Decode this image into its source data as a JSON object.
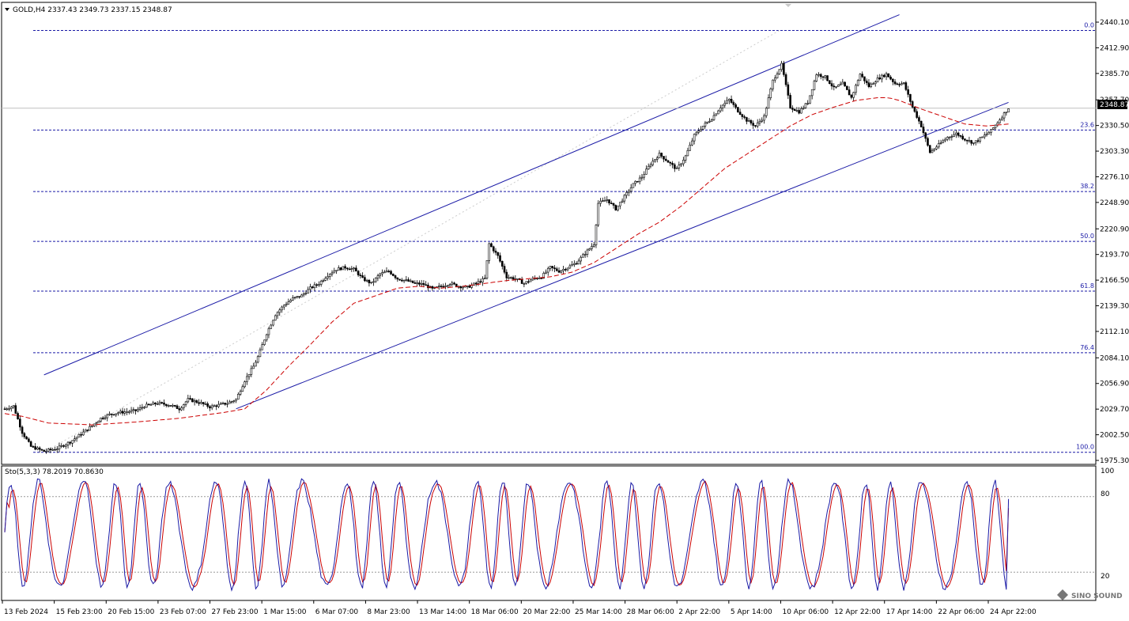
{
  "header": {
    "symbol_line": "GOLD,H4  2337.43 2349.73 2337.15 2348.87"
  },
  "oscillator": {
    "title": "Sto(5,3,3) 78.2019 70.8630",
    "levels": [
      "100",
      "80",
      "20"
    ]
  },
  "price_axis": {
    "current_price": "2348.87"
  },
  "watermark": "SINO SOUND",
  "chart_data": {
    "type": "candlestick",
    "symbol": "GOLD",
    "timeframe": "H4",
    "ohlc_last": {
      "open": 2337.43,
      "high": 2349.73,
      "low": 2337.15,
      "close": 2348.87
    },
    "y_ticks": [
      "2440.10",
      "2412.90",
      "2385.70",
      "2357.70",
      "2330.50",
      "2303.30",
      "2276.10",
      "2248.90",
      "2220.90",
      "2193.70",
      "2166.50",
      "2139.30",
      "2112.10",
      "2084.10",
      "2056.90",
      "2029.70",
      "2002.50",
      "1975.30"
    ],
    "x_ticks": [
      "13 Feb 2024",
      "15 Feb 23:00",
      "20 Feb 15:00",
      "23 Feb 07:00",
      "27 Feb 23:00",
      "1 Mar 15:00",
      "6 Mar 07:00",
      "8 Mar 23:00",
      "13 Mar 14:00",
      "18 Mar 06:00",
      "20 Mar 22:00",
      "25 Mar 14:00",
      "28 Mar 06:00",
      "2 Apr 22:00",
      "5 Apr 14:00",
      "10 Apr 06:00",
      "12 Apr 22:00",
      "17 Apr 14:00",
      "22 Apr 06:00",
      "24 Apr 22:00"
    ],
    "fibonacci": [
      {
        "level": "0.0",
        "price": 2431.3
      },
      {
        "level": "23.6",
        "price": 2325.7
      },
      {
        "level": "38.2",
        "price": 2260.4
      },
      {
        "level": "50.0",
        "price": 2207.6
      },
      {
        "level": "61.8",
        "price": 2154.8
      },
      {
        "level": "76.4",
        "price": 2089.5
      },
      {
        "level": "100.0",
        "price": 1983.9
      }
    ],
    "price_path": [
      [
        0,
        2030
      ],
      [
        4,
        2033
      ],
      [
        8,
        2005
      ],
      [
        12,
        1990
      ],
      [
        18,
        1985
      ],
      [
        24,
        1988
      ],
      [
        30,
        1995
      ],
      [
        36,
        2005
      ],
      [
        40,
        2012
      ],
      [
        44,
        2020
      ],
      [
        48,
        2024
      ],
      [
        52,
        2026
      ],
      [
        56,
        2027
      ],
      [
        60,
        2028
      ],
      [
        64,
        2033
      ],
      [
        70,
        2036
      ],
      [
        76,
        2034
      ],
      [
        80,
        2030
      ],
      [
        84,
        2040
      ],
      [
        90,
        2036
      ],
      [
        94,
        2032
      ],
      [
        98,
        2034
      ],
      [
        102,
        2036
      ],
      [
        106,
        2040
      ],
      [
        110,
        2060
      ],
      [
        114,
        2075
      ],
      [
        116,
        2085
      ],
      [
        120,
        2110
      ],
      [
        124,
        2130
      ],
      [
        128,
        2140
      ],
      [
        132,
        2147
      ],
      [
        136,
        2150
      ],
      [
        140,
        2158
      ],
      [
        144,
        2163
      ],
      [
        148,
        2172
      ],
      [
        152,
        2178
      ],
      [
        156,
        2180
      ],
      [
        160,
        2178
      ],
      [
        164,
        2168
      ],
      [
        168,
        2163
      ],
      [
        172,
        2173
      ],
      [
        176,
        2176
      ],
      [
        180,
        2168
      ],
      [
        184,
        2166
      ],
      [
        188,
        2163
      ],
      [
        192,
        2162
      ],
      [
        196,
        2157
      ],
      [
        200,
        2160
      ],
      [
        204,
        2163
      ],
      [
        208,
        2160
      ],
      [
        212,
        2159
      ],
      [
        216,
        2163
      ],
      [
        220,
        2168
      ],
      [
        222,
        2205
      ],
      [
        226,
        2192
      ],
      [
        230,
        2170
      ],
      [
        234,
        2168
      ],
      [
        238,
        2163
      ],
      [
        242,
        2168
      ],
      [
        246,
        2170
      ],
      [
        250,
        2180
      ],
      [
        254,
        2176
      ],
      [
        258,
        2180
      ],
      [
        262,
        2185
      ],
      [
        266,
        2195
      ],
      [
        270,
        2205
      ],
      [
        272,
        2248
      ],
      [
        276,
        2252
      ],
      [
        280,
        2242
      ],
      [
        284,
        2255
      ],
      [
        288,
        2268
      ],
      [
        292,
        2276
      ],
      [
        296,
        2290
      ],
      [
        300,
        2300
      ],
      [
        304,
        2292
      ],
      [
        308,
        2284
      ],
      [
        312,
        2298
      ],
      [
        316,
        2320
      ],
      [
        320,
        2330
      ],
      [
        324,
        2338
      ],
      [
        328,
        2350
      ],
      [
        332,
        2358
      ],
      [
        336,
        2346
      ],
      [
        340,
        2336
      ],
      [
        344,
        2330
      ],
      [
        348,
        2340
      ],
      [
        352,
        2378
      ],
      [
        356,
        2395
      ],
      [
        360,
        2350
      ],
      [
        364,
        2345
      ],
      [
        368,
        2355
      ],
      [
        372,
        2385
      ],
      [
        376,
        2382
      ],
      [
        380,
        2370
      ],
      [
        384,
        2375
      ],
      [
        388,
        2360
      ],
      [
        392,
        2385
      ],
      [
        396,
        2372
      ],
      [
        400,
        2380
      ],
      [
        404,
        2385
      ],
      [
        408,
        2375
      ],
      [
        412,
        2375
      ],
      [
        416,
        2350
      ],
      [
        420,
        2330
      ],
      [
        424,
        2302
      ],
      [
        428,
        2310
      ],
      [
        432,
        2318
      ],
      [
        436,
        2322
      ],
      [
        440,
        2316
      ],
      [
        444,
        2312
      ],
      [
        448,
        2318
      ],
      [
        452,
        2325
      ],
      [
        456,
        2337
      ],
      [
        460,
        2349
      ]
    ],
    "ma_path": [
      [
        0,
        2025
      ],
      [
        8,
        2022
      ],
      [
        20,
        2015
      ],
      [
        40,
        2013
      ],
      [
        60,
        2016
      ],
      [
        80,
        2020
      ],
      [
        100,
        2026
      ],
      [
        110,
        2030
      ],
      [
        120,
        2050
      ],
      [
        130,
        2075
      ],
      [
        140,
        2098
      ],
      [
        150,
        2122
      ],
      [
        160,
        2142
      ],
      [
        170,
        2150
      ],
      [
        180,
        2158
      ],
      [
        190,
        2160
      ],
      [
        200,
        2158
      ],
      [
        210,
        2160
      ],
      [
        220,
        2163
      ],
      [
        230,
        2166
      ],
      [
        240,
        2168
      ],
      [
        250,
        2170
      ],
      [
        260,
        2175
      ],
      [
        270,
        2185
      ],
      [
        280,
        2200
      ],
      [
        290,
        2215
      ],
      [
        300,
        2228
      ],
      [
        310,
        2245
      ],
      [
        320,
        2265
      ],
      [
        330,
        2285
      ],
      [
        340,
        2300
      ],
      [
        350,
        2315
      ],
      [
        360,
        2330
      ],
      [
        370,
        2342
      ],
      [
        380,
        2350
      ],
      [
        390,
        2357
      ],
      [
        400,
        2360
      ],
      [
        405,
        2360
      ],
      [
        410,
        2357
      ],
      [
        420,
        2348
      ],
      [
        430,
        2340
      ],
      [
        440,
        2332
      ],
      [
        450,
        2330
      ],
      [
        460,
        2332
      ]
    ],
    "channel": {
      "upper": [
        [
          18,
          2066
        ],
        [
          410,
          2448
        ]
      ],
      "lower": [
        [
          106,
          2030
        ],
        [
          460,
          2355
        ]
      ]
    },
    "stochastic": {
      "params": "5,3,3",
      "main": 78.2019,
      "signal": 70.863
    }
  }
}
